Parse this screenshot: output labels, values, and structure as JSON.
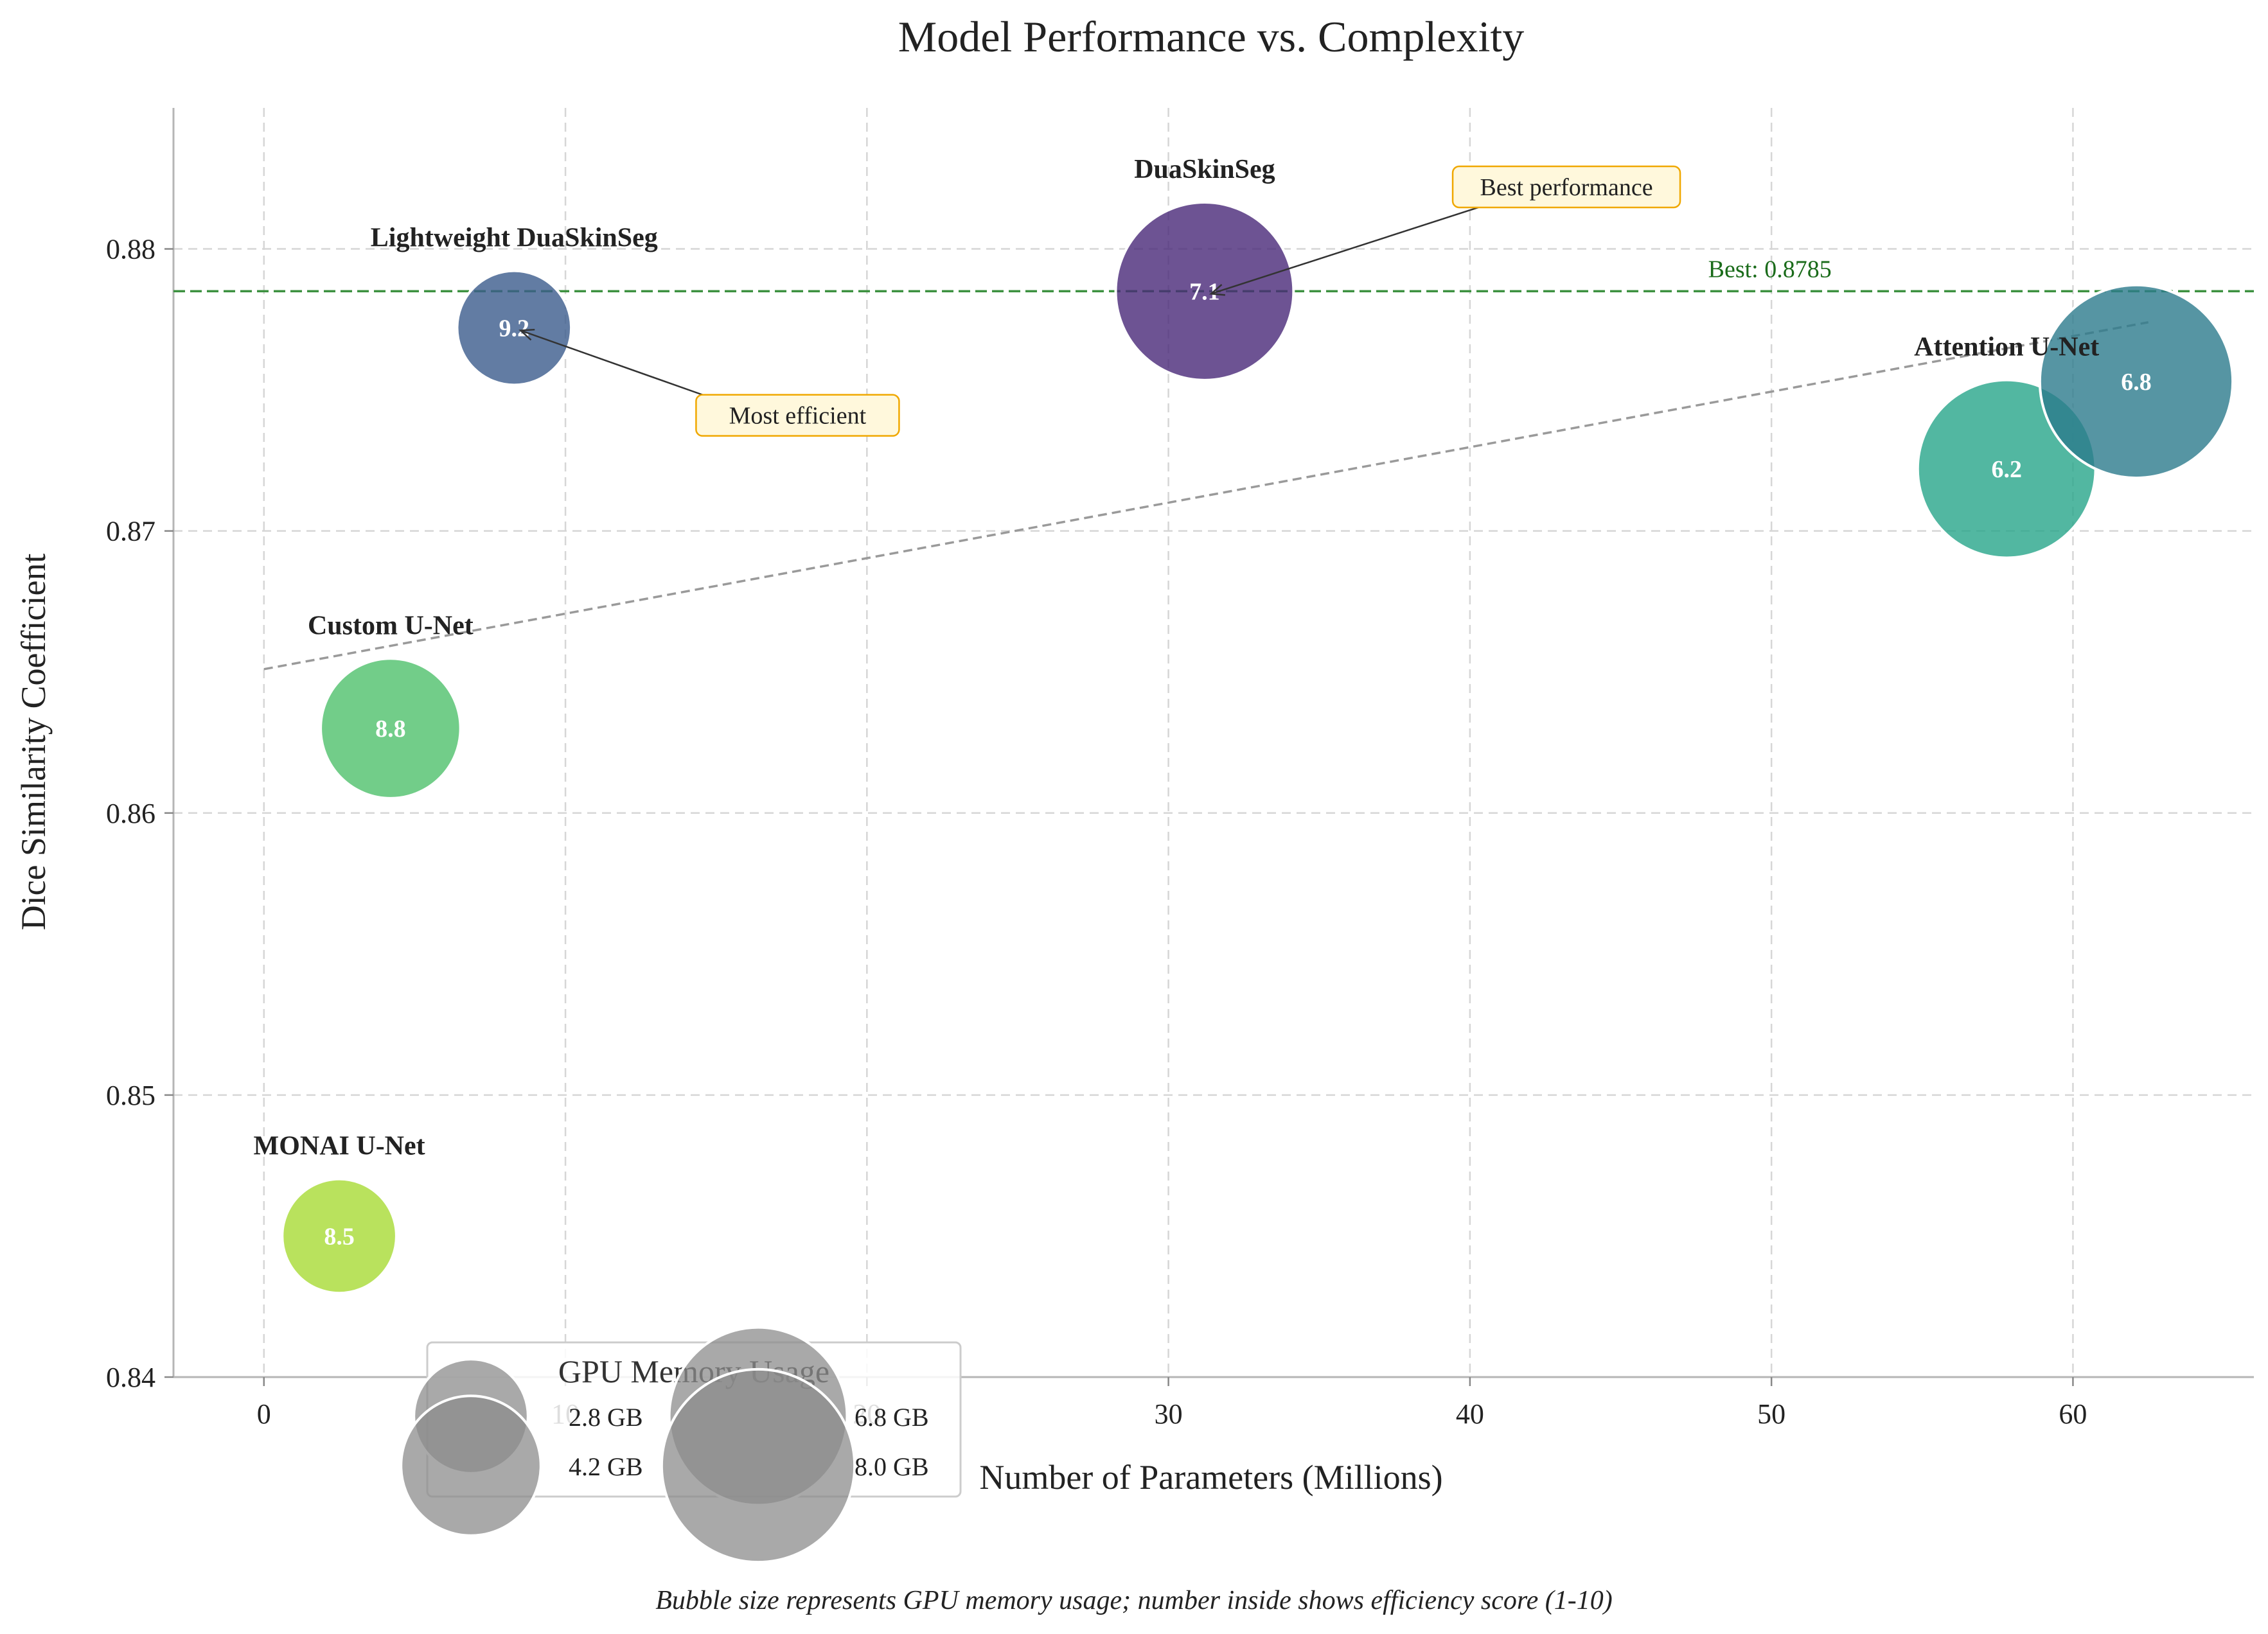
{
  "chart_data": {
    "type": "scatter",
    "title": "Model Performance vs. Complexity",
    "xlabel": "Number of Parameters (Millions)",
    "ylabel": "Dice Similarity Coefficient",
    "xlim": [
      -3,
      66
    ],
    "ylim": [
      0.84,
      0.885
    ],
    "xticks": [
      0,
      10,
      20,
      30,
      40,
      50,
      60
    ],
    "xtick_labels": [
      "0",
      "10",
      "20",
      "30",
      "40",
      "50",
      "60"
    ],
    "yticks": [
      0.84,
      0.85,
      0.86,
      0.87,
      0.88
    ],
    "ytick_labels": [
      "0.84",
      "0.85",
      "0.86",
      "0.87",
      "0.88"
    ],
    "grid": true,
    "points": [
      {
        "name": "Lightweight DuaSkinSeg",
        "x": 8.3,
        "y": 0.8772,
        "gpu_gb": 2.8,
        "score": "9.2",
        "color": "#3b5b8c"
      },
      {
        "name": "DuaSkinSeg",
        "x": 31.2,
        "y": 0.8785,
        "gpu_gb": 6.8,
        "score": "7.1",
        "color": "#482878"
      },
      {
        "name": "Attention U-Net",
        "x": 57.8,
        "y": 0.8722,
        "gpu_gb": 6.8,
        "score": "6.2",
        "color": "#27a58a"
      },
      {
        "name": "",
        "x": 62.1,
        "y": 0.8753,
        "gpu_gb": 8.0,
        "score": "6.8",
        "color": "#2c7a8c"
      },
      {
        "name": "Custom U-Net",
        "x": 4.2,
        "y": 0.863,
        "gpu_gb": 4.2,
        "score": "8.8",
        "color": "#4fc16b"
      },
      {
        "name": "MONAI U-Net",
        "x": 2.5,
        "y": 0.845,
        "gpu_gb": 2.8,
        "score": "8.5",
        "color": "#a8db34"
      }
    ],
    "trend_line": {
      "x": [
        0,
        62.5
      ],
      "y": [
        0.8651,
        0.8774
      ]
    },
    "best_line": {
      "y": 0.8785,
      "label": "Best: 0.8785"
    },
    "annotations": [
      {
        "text": "Most efficient",
        "target": "Lightweight DuaSkinSeg",
        "text_x": 17.7,
        "text_y": 0.8741
      },
      {
        "text": "Best performance",
        "target": "DuaSkinSeg",
        "text_x": 43.2,
        "text_y": 0.8822
      }
    ],
    "legend": {
      "title": "GPU Memory Usage",
      "placement": "bottom-left",
      "entries": [
        {
          "label": "2.8 GB",
          "gb": 2.8
        },
        {
          "label": "4.2 GB",
          "gb": 4.2
        },
        {
          "label": "6.8 GB",
          "gb": 6.8
        },
        {
          "label": "8.0 GB",
          "gb": 8.0
        }
      ]
    },
    "caption": "Bubble size represents GPU memory usage; number inside shows efficiency score (1-10)"
  }
}
